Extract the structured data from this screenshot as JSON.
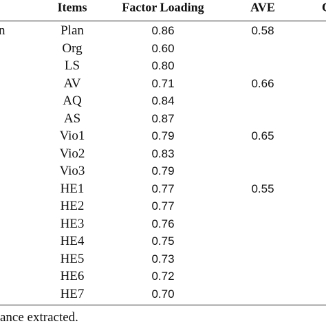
{
  "table": {
    "left_fragment": "n",
    "header": [
      "Items",
      "Factor Loading",
      "AVE",
      "C"
    ],
    "rows": [
      [
        "Plan",
        "0.86",
        "0.58"
      ],
      [
        "Org",
        "0.60",
        null
      ],
      [
        "LS",
        "0.80",
        null
      ],
      [
        "AV",
        "0.71",
        "0.66"
      ],
      [
        "AQ",
        "0.84",
        null
      ],
      [
        "AS",
        "0.87",
        null
      ],
      [
        "Vio1",
        "0.79",
        "0.65"
      ],
      [
        "Vio2",
        "0.83",
        null
      ],
      [
        "Vio3",
        "0.79",
        null
      ],
      [
        "HE1",
        "0.77",
        "0.55"
      ],
      [
        "HE2",
        "0.77",
        null
      ],
      [
        "HE3",
        "0.76",
        null
      ],
      [
        "HE4",
        "0.75",
        null
      ],
      [
        "HE5",
        "0.73",
        null
      ],
      [
        "HE6",
        "0.72",
        null
      ],
      [
        "HE7",
        "0.70",
        null
      ]
    ]
  },
  "footnote": "ance extracted."
}
